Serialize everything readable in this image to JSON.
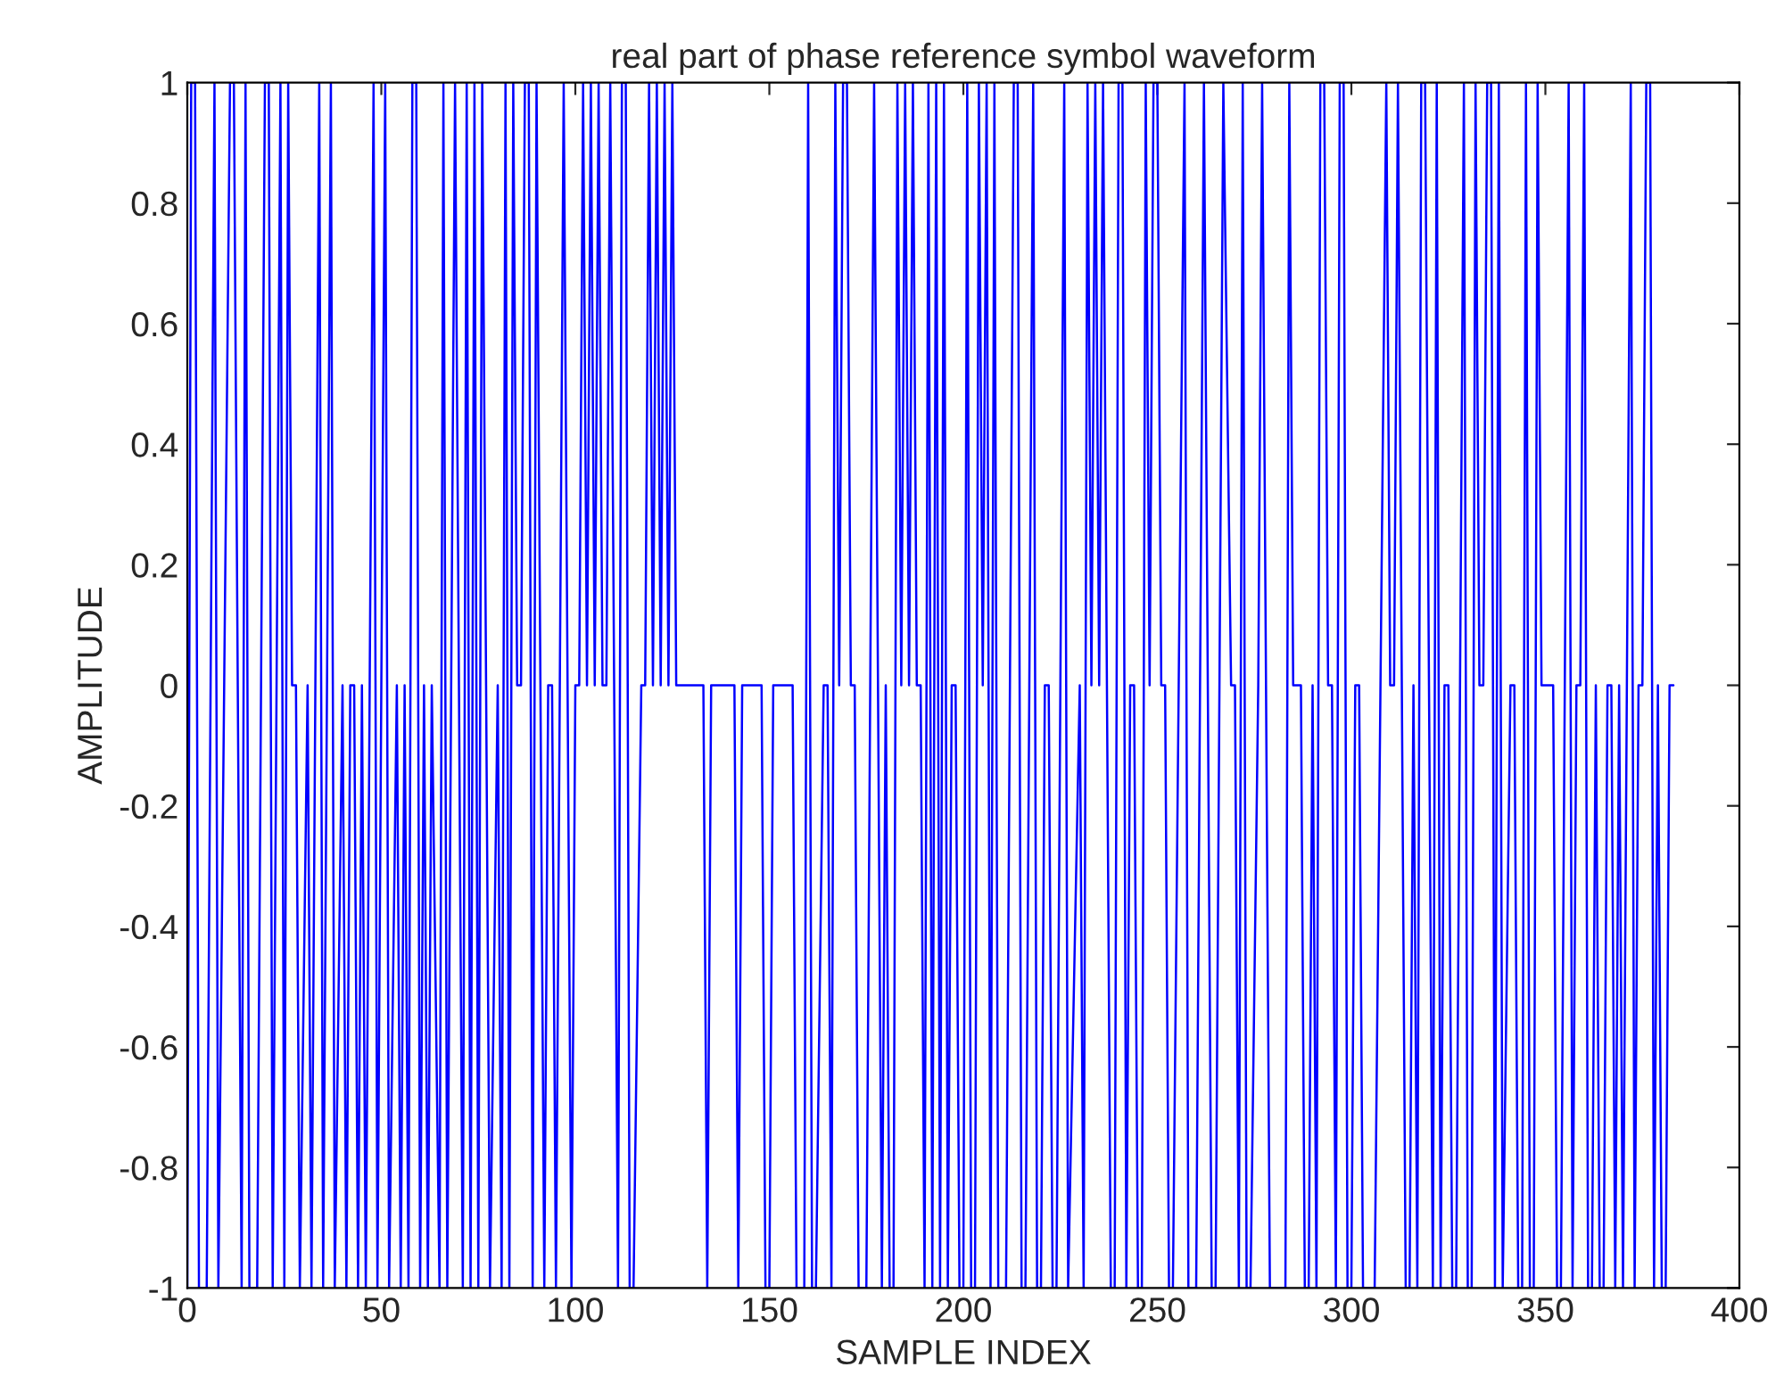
{
  "chart_data": {
    "type": "line",
    "title": "real part of phase reference symbol waveform",
    "xlabel": "SAMPLE INDEX",
    "ylabel": "AMPLITUDE",
    "xlim": [
      0,
      400
    ],
    "xticks": [
      0,
      50,
      100,
      150,
      200,
      250,
      300,
      350,
      400
    ],
    "ylim": [
      -1,
      1
    ],
    "yticks": [
      -1,
      -0.8,
      -0.6,
      -0.4,
      -0.2,
      0,
      0.2,
      0.4,
      0.6,
      0.8,
      1
    ],
    "grid": false,
    "legend": false,
    "marker": "none",
    "line_style": "solid",
    "series": [
      {
        "color": "#0000ff",
        "x": [
          0,
          1,
          2,
          3,
          5,
          6,
          7,
          8,
          11,
          12,
          13,
          14,
          15,
          16,
          18,
          19,
          20,
          21,
          22,
          24,
          25,
          26,
          27,
          28,
          29,
          31,
          32,
          34,
          35,
          36,
          37,
          38,
          40,
          41,
          42,
          43,
          44,
          45,
          46,
          47,
          48,
          49,
          50,
          51,
          52,
          54,
          55,
          56,
          57,
          58,
          59,
          60,
          61,
          62,
          63,
          65,
          66,
          67,
          69,
          70,
          71,
          72,
          73,
          74,
          75,
          76,
          77,
          78,
          80,
          81,
          82,
          83,
          84,
          85,
          86,
          87,
          88,
          89,
          90,
          92,
          93,
          94,
          95,
          97,
          99,
          100,
          101,
          102,
          103,
          104,
          105,
          106,
          107,
          108,
          109,
          111,
          112,
          113,
          114,
          115,
          117,
          118,
          119,
          120,
          121,
          122,
          123,
          124,
          125,
          126,
          133,
          134,
          135,
          141,
          142,
          143,
          144,
          148,
          149,
          150,
          151,
          152,
          156,
          157,
          159,
          160,
          161,
          162,
          164,
          165,
          166,
          167,
          168,
          169,
          170,
          171,
          172,
          173,
          175,
          177,
          179,
          180,
          181,
          182,
          183,
          184,
          185,
          186,
          187,
          188,
          189,
          190,
          191,
          192,
          193,
          194,
          195,
          196,
          197,
          198,
          199,
          200,
          201,
          202,
          203,
          204,
          205,
          206,
          207,
          208,
          209,
          211,
          212,
          213,
          214,
          215,
          216,
          217,
          218,
          219,
          220,
          221,
          222,
          223,
          224,
          226,
          227,
          230,
          231,
          232,
          233,
          234,
          235,
          236,
          237,
          238,
          239,
          240,
          241,
          242,
          243,
          244,
          245,
          246,
          247,
          248,
          249,
          250,
          251,
          252,
          253,
          254,
          257,
          258,
          260,
          261,
          262,
          263,
          264,
          265,
          267,
          269,
          270,
          271,
          272,
          273,
          274,
          276,
          277,
          278,
          279,
          283,
          284,
          285,
          286,
          287,
          288,
          289,
          290,
          291,
          292,
          293,
          294,
          295,
          296,
          297,
          298,
          299,
          300,
          301,
          302,
          303,
          306,
          309,
          310,
          311,
          312,
          313,
          314,
          315,
          316,
          317,
          318,
          319,
          320,
          321,
          322,
          323,
          324,
          325,
          326,
          327,
          329,
          330,
          331,
          332,
          333,
          334,
          335,
          336,
          337,
          338,
          339,
          341,
          342,
          343,
          344,
          345,
          346,
          347,
          348,
          349,
          352,
          353,
          354,
          355,
          356,
          357,
          358,
          359,
          360,
          361,
          362,
          363,
          364,
          365,
          366,
          367,
          368,
          369,
          370,
          372,
          373,
          374,
          375,
          376,
          377,
          378,
          379,
          380,
          381,
          382,
          383
        ],
        "values": [
          -1,
          1,
          1,
          -1,
          -1,
          0,
          1,
          -1,
          1,
          1,
          0,
          -1,
          1,
          -1,
          -1,
          0,
          1,
          1,
          -1,
          1,
          -1,
          1,
          0,
          0,
          -1,
          0,
          -1,
          1,
          -1,
          0,
          1,
          -1,
          0,
          -1,
          0,
          0,
          -1,
          0,
          -1,
          0,
          1,
          -1,
          0,
          1,
          -1,
          0,
          -1,
          0,
          -1,
          1,
          1,
          -1,
          0,
          -1,
          0,
          -1,
          1,
          -1,
          1,
          0,
          -1,
          1,
          -1,
          1,
          -1,
          1,
          0,
          -1,
          0,
          -1,
          1,
          -1,
          1,
          0,
          0,
          1,
          1,
          -1,
          1,
          -1,
          0,
          0,
          -1,
          1,
          -1,
          0,
          0,
          1,
          0,
          1,
          0,
          1,
          0,
          0,
          1,
          -1,
          1,
          1,
          -1,
          -1,
          0,
          0,
          1,
          0,
          1,
          0,
          1,
          0,
          1,
          0,
          0,
          -1,
          0,
          0,
          -1,
          0,
          0,
          0,
          -1,
          -1,
          0,
          0,
          0,
          -1,
          -1,
          1,
          -1,
          -1,
          0,
          0,
          -1,
          1,
          0,
          1,
          1,
          0,
          0,
          -1,
          -1,
          1,
          -1,
          0,
          -1,
          -1,
          1,
          0,
          1,
          0,
          1,
          0,
          0,
          -1,
          1,
          -1,
          1,
          -1,
          1,
          -1,
          0,
          0,
          -1,
          -1,
          1,
          -1,
          -1,
          1,
          0,
          1,
          -1,
          1,
          -1,
          -1,
          0,
          1,
          1,
          -1,
          -1,
          0,
          1,
          -1,
          -1,
          0,
          0,
          -1,
          -1,
          1,
          -1,
          0,
          -1,
          1,
          0,
          1,
          0,
          1,
          0,
          -1,
          -1,
          1,
          1,
          -1,
          0,
          0,
          -1,
          -1,
          1,
          0,
          1,
          1,
          0,
          0,
          -1,
          -1,
          1,
          -1,
          -1,
          0,
          1,
          0,
          -1,
          -1,
          1,
          0,
          0,
          -1,
          1,
          -1,
          -1,
          0,
          1,
          0,
          -1,
          -1,
          1,
          0,
          0,
          0,
          -1,
          -1,
          0,
          -1,
          1,
          1,
          0,
          0,
          -1,
          1,
          1,
          -1,
          -1,
          0,
          0,
          -1,
          -1,
          1,
          0,
          0,
          1,
          0,
          -1,
          -1,
          0,
          -1,
          1,
          1,
          0,
          -1,
          1,
          -1,
          0,
          0,
          -1,
          -1,
          1,
          -1,
          -1,
          1,
          0,
          0,
          1,
          1,
          -1,
          1,
          -1,
          0,
          0,
          -1,
          -1,
          1,
          -1,
          -1,
          1,
          0,
          0,
          -1,
          -1,
          0,
          1,
          -1,
          0,
          0,
          1,
          -1,
          -1,
          0,
          -1,
          -1,
          0,
          0,
          -1,
          0,
          -1,
          1,
          -1,
          0,
          0,
          1,
          1,
          -1,
          0,
          -1,
          -1,
          0,
          0
        ]
      }
    ]
  }
}
